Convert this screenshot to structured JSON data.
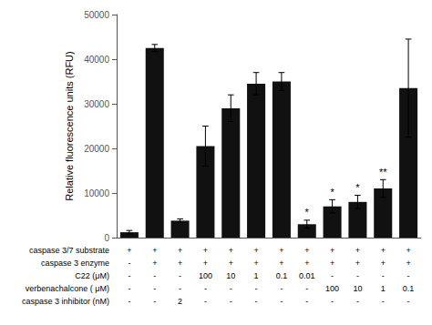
{
  "chart_data": {
    "type": "bar",
    "ylabel": "Relative fluorescence units (RFU)",
    "categories": [
      null,
      null,
      null,
      null,
      null,
      null,
      null,
      null,
      null,
      null,
      null,
      null
    ],
    "values": [
      1200,
      42500,
      3800,
      20500,
      29000,
      34500,
      35000,
      3000,
      7000,
      8000,
      11000,
      33500
    ],
    "errors": [
      400,
      800,
      400,
      4500,
      3000,
      2500,
      2000,
      900,
      1500,
      1500,
      2000,
      11000
    ],
    "color": "#111111",
    "ylim": [
      0,
      50000
    ],
    "yticks": [
      0,
      10000,
      20000,
      30000,
      40000,
      50000
    ],
    "grid": false,
    "annotations": [
      {
        "index": 7,
        "text": "*"
      },
      {
        "index": 8,
        "text": "*"
      },
      {
        "index": 9,
        "text": "*"
      },
      {
        "index": 10,
        "text": "**"
      }
    ],
    "table": [
      {
        "label": "caspase 3/7 substrate",
        "values": [
          "+",
          "+",
          "+",
          "+",
          "+",
          "+",
          "+",
          "+",
          "+",
          "+",
          "+",
          "+"
        ]
      },
      {
        "label": "caspase 3 enzyme",
        "values": [
          "-",
          "+",
          "+",
          "+",
          "+",
          "+",
          "+",
          "+",
          "+",
          "+",
          "+",
          "+"
        ]
      },
      {
        "label": "C22 (μM)",
        "values": [
          "-",
          "-",
          "-",
          "100",
          "10",
          "1",
          "0.1",
          "0.01",
          "-",
          "-",
          "-",
          "-"
        ]
      },
      {
        "label": "verbenachalcone ( μM)",
        "values": [
          "-",
          "-",
          "-",
          "-",
          "-",
          "-",
          "-",
          "-",
          "100",
          "10",
          "1",
          "0.1"
        ]
      },
      {
        "label": "caspase 3 inhibitor (nM)",
        "values": [
          "-",
          "-",
          "2",
          "-",
          "-",
          "-",
          "-",
          "-",
          "-",
          "-",
          "-",
          "-"
        ]
      }
    ]
  }
}
